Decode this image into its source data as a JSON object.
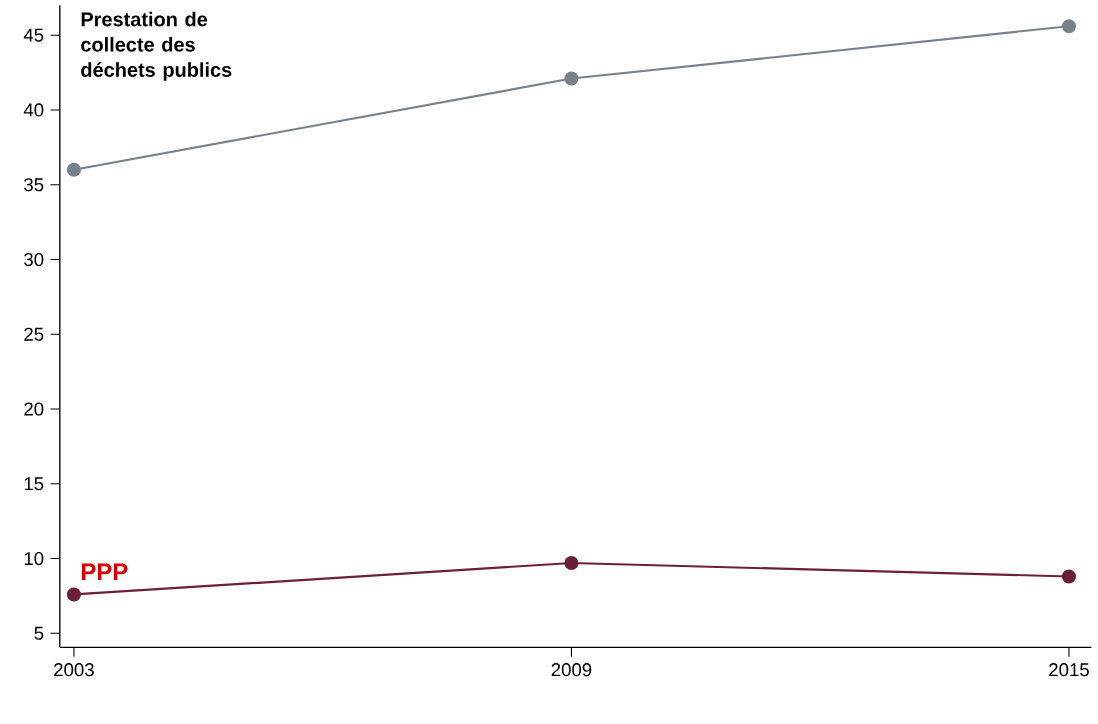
{
  "chart_data": {
    "type": "line",
    "x": [
      2003,
      2009,
      2015
    ],
    "series": [
      {
        "name": "Prestation de collecte des déchets publics",
        "color": "#77818c",
        "values": [
          36.0,
          42.1,
          45.6
        ]
      },
      {
        "name": "PPP",
        "color": "#6b1f3a",
        "values": [
          7.6,
          9.7,
          8.8
        ]
      }
    ],
    "xlim": [
      2002.83,
      2015.27
    ],
    "ylim": [
      4.06,
      47.0
    ],
    "xticks": [
      2003,
      2009,
      2015
    ],
    "yticks": [
      5,
      10,
      15,
      20,
      25,
      30,
      35,
      40,
      45
    ],
    "grid": false,
    "legend": false,
    "marker": "circle",
    "line_style": "solid"
  }
}
